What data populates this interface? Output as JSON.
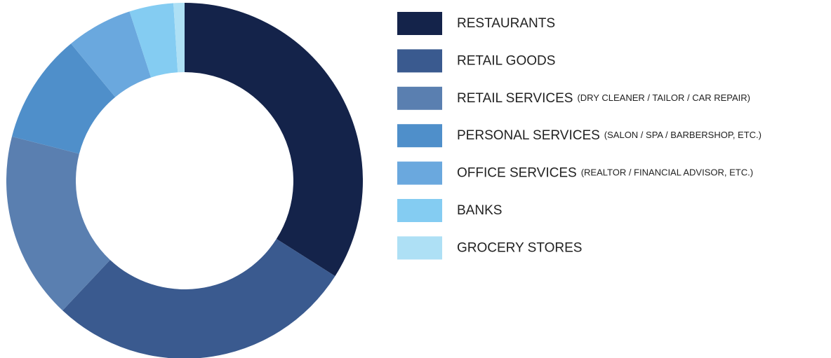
{
  "chart_data": {
    "type": "donut",
    "categories": [
      "RESTAURANTS",
      "RETAIL GOODS",
      "RETAIL SERVICES",
      "PERSONAL SERVICES",
      "OFFICE SERVICES",
      "BANKS",
      "GROCERY STORES"
    ],
    "category_details": [
      null,
      null,
      "(DRY CLEANER / TAILOR / CAR REPAIR)",
      "(SALON / SPA / BARBERSHOP, ETC.)",
      "(REALTOR / FINANCIAL ADVISOR, ETC.)",
      null,
      null
    ],
    "values": [
      34,
      28,
      17,
      10,
      6,
      4,
      1
    ],
    "colors": [
      "#14234a",
      "#3a5a8f",
      "#5a7fb0",
      "#4f8fca",
      "#6aa8de",
      "#84ccf2",
      "#aee0f5"
    ],
    "legend": "right"
  }
}
